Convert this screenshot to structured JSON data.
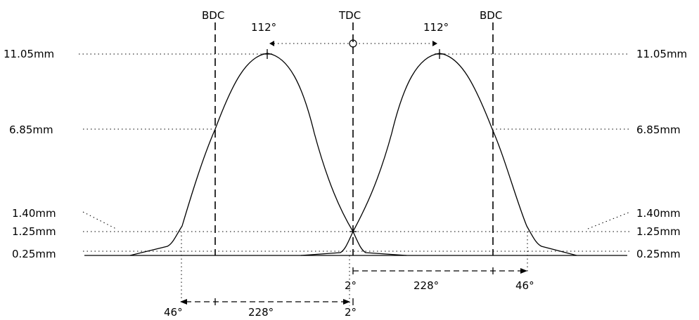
{
  "markers": {
    "bdc": "BDC",
    "tdc": "TDC"
  },
  "lift_labels": {
    "max": "11.05mm",
    "half": "6.85mm",
    "l140": "1.40mm",
    "l125": "1.25mm",
    "l025": "0.25mm"
  },
  "angle_labels": {
    "peak": "112°",
    "span": "228°",
    "close": "46°",
    "overlap": "2°"
  }
}
